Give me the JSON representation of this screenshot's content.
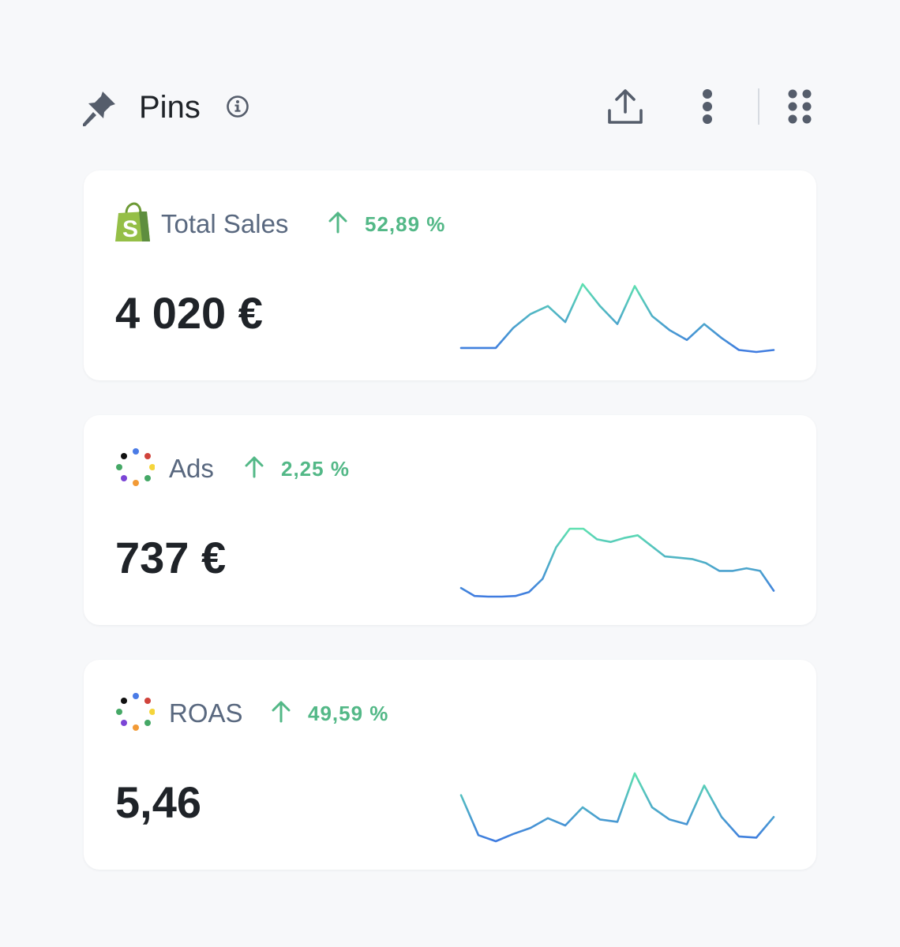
{
  "header": {
    "title": "Pins",
    "icons": [
      "pin-icon",
      "info-icon",
      "share-icon",
      "more-vertical-icon",
      "grid-icon"
    ]
  },
  "colors": {
    "positive": "#53b887",
    "label": "#59687f",
    "spark_start": "#3f7be0",
    "spark_end": "#5ee0b0",
    "shopify_green": "#95bf47"
  },
  "cards": [
    {
      "label": "Total Sales",
      "change": "52,89 %",
      "value": "4 020 €",
      "logo": "shopify-icon",
      "spark": [
        4,
        4,
        4,
        14,
        21,
        25,
        17,
        36,
        25,
        16,
        35,
        20,
        13,
        8,
        16,
        9,
        3,
        2,
        3
      ]
    },
    {
      "label": "Ads",
      "change": "2,25 %",
      "value": "737 €",
      "logo": "ads-dots-icon",
      "spark": [
        7,
        1,
        0.5,
        0.5,
        1,
        4,
        14,
        38,
        52,
        52,
        44,
        42,
        45,
        47,
        39,
        31,
        30,
        29,
        26,
        20,
        20,
        22,
        20,
        5
      ]
    },
    {
      "label": "ROAS",
      "change": "49,59 %",
      "value": "5,46",
      "logo": "ads-dots-icon",
      "spark": [
        40,
        7,
        2,
        8,
        13,
        21,
        15,
        30,
        20,
        18,
        58,
        30,
        20,
        16,
        48,
        22,
        6,
        5,
        22
      ]
    }
  ]
}
